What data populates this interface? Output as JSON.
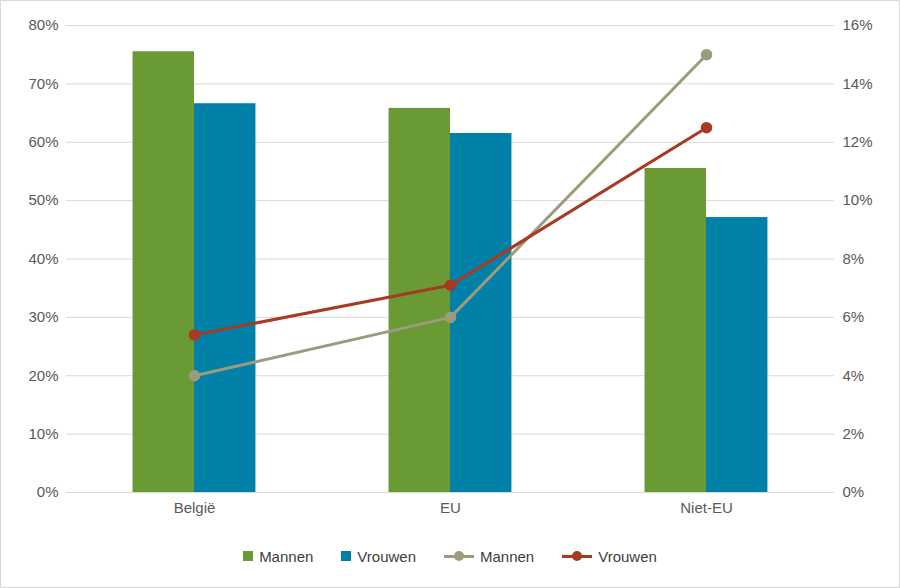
{
  "chart_data": {
    "type": "bar",
    "categories": [
      "België",
      "EU",
      "Niet-EU"
    ],
    "series": [
      {
        "name": "Mannen",
        "type": "bar",
        "color": "#6a9a34",
        "values": [
          75.5,
          65.8,
          55.5
        ]
      },
      {
        "name": "Vrouwen",
        "type": "bar",
        "color": "#0281a8",
        "values": [
          66.6,
          61.5,
          47.1
        ]
      },
      {
        "name": "Mannen",
        "type": "line",
        "axis": "y2",
        "color": "#9c9c7c",
        "marker": "circle",
        "values": [
          4.0,
          6.0,
          15.0
        ]
      },
      {
        "name": "Vrouwen",
        "type": "line",
        "axis": "y2",
        "color": "#a83a22",
        "marker": "circle",
        "values": [
          5.4,
          7.1,
          12.5
        ]
      }
    ],
    "ylim": [
      0,
      80
    ],
    "yticks": [
      {
        "value": 0,
        "label": "0%"
      },
      {
        "value": 10,
        "label": "10%"
      },
      {
        "value": 20,
        "label": "20%"
      },
      {
        "value": 30,
        "label": "30%"
      },
      {
        "value": 40,
        "label": "40%"
      },
      {
        "value": 50,
        "label": "50%"
      },
      {
        "value": 60,
        "label": "60%"
      },
      {
        "value": 70,
        "label": "70%"
      },
      {
        "value": 80,
        "label": "80%"
      }
    ],
    "y2lim": [
      0,
      16
    ],
    "y2ticks": [
      {
        "value": 0,
        "label": "0%"
      },
      {
        "value": 2,
        "label": "2%"
      },
      {
        "value": 4,
        "label": "4%"
      },
      {
        "value": 6,
        "label": "6%"
      },
      {
        "value": 8,
        "label": "8%"
      },
      {
        "value": 10,
        "label": "10%"
      },
      {
        "value": 12,
        "label": "12%"
      },
      {
        "value": 14,
        "label": "14%"
      },
      {
        "value": 16,
        "label": "16%"
      }
    ],
    "grid": true,
    "legend": "bottom"
  }
}
